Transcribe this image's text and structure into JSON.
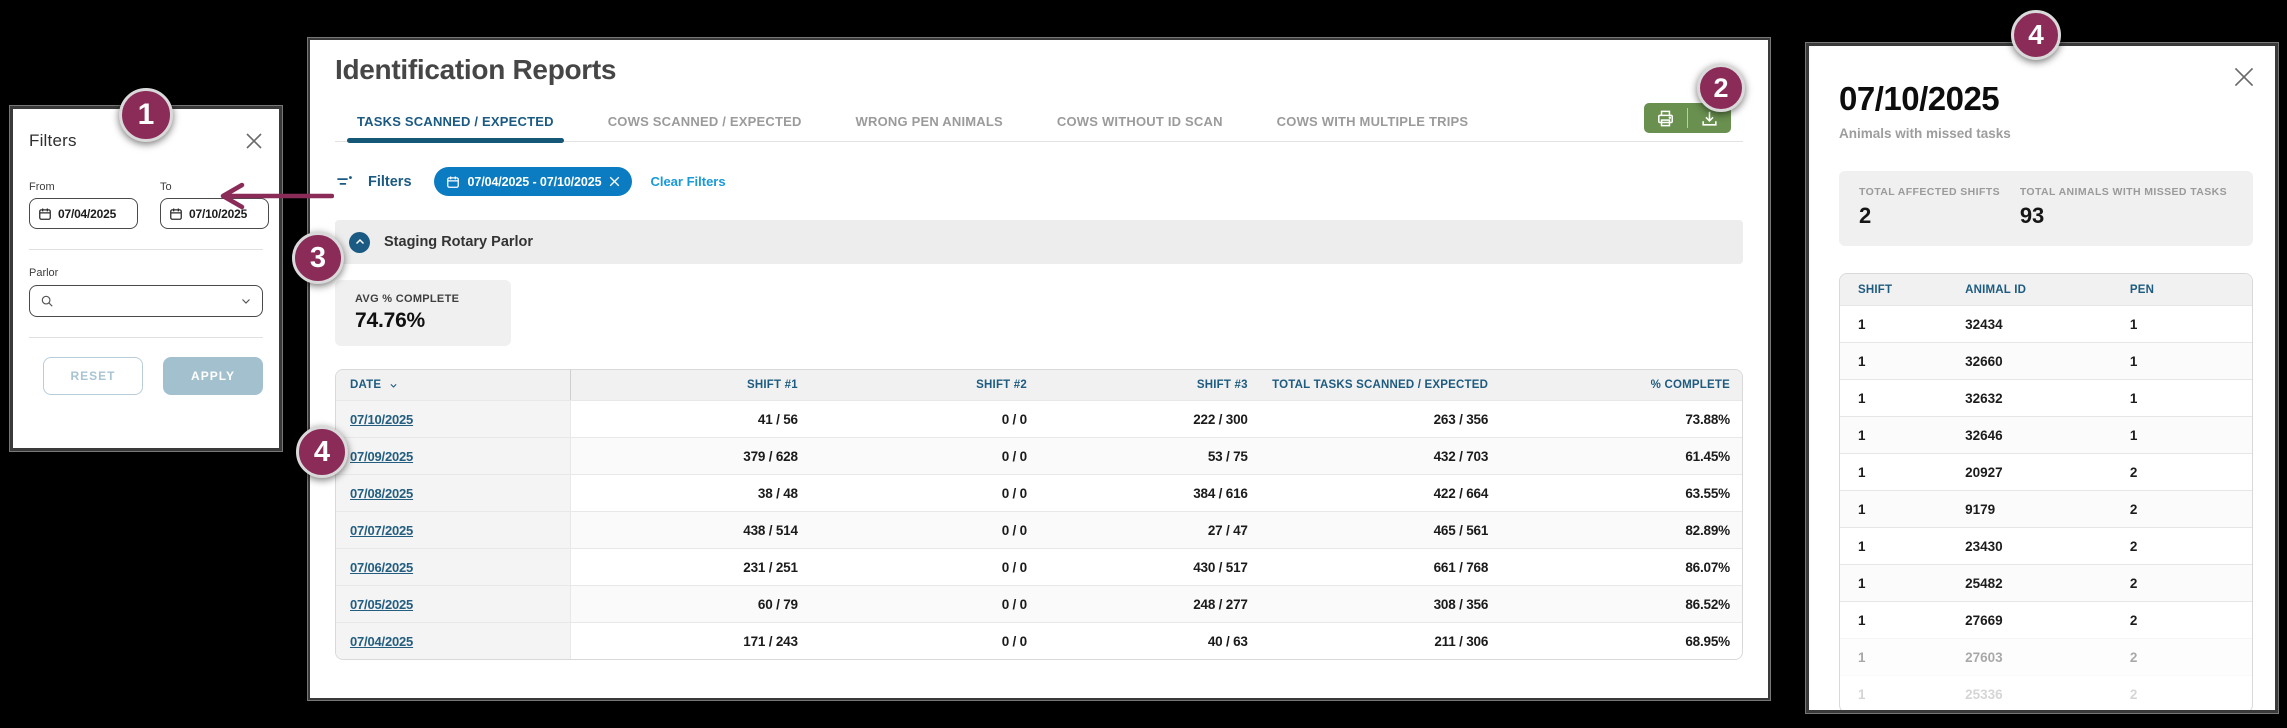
{
  "colors": {
    "annotation": "#8b2b58",
    "accent_blue": "#1b5a82",
    "chip_blue": "#0b7cc1",
    "link_blue": "#189ad8",
    "action_green": "#69904f",
    "apply_button": "#a3c0cf"
  },
  "annotations": {
    "step1": "1",
    "step2": "2",
    "step3": "3",
    "step4_table": "4",
    "step4_panel": "4"
  },
  "filters_panel": {
    "title": "Filters",
    "from_label": "From",
    "from_value": "07/04/2025",
    "to_label": "To",
    "to_value": "07/10/2025",
    "parlor_label": "Parlor",
    "reset_label": "RESET",
    "apply_label": "APPLY"
  },
  "report": {
    "title": "Identification Reports",
    "tabs": [
      {
        "label": "TASKS SCANNED / EXPECTED",
        "active": true
      },
      {
        "label": "COWS SCANNED / EXPECTED",
        "active": false
      },
      {
        "label": "WRONG PEN ANIMALS",
        "active": false
      },
      {
        "label": "COWS WITHOUT ID SCAN",
        "active": false
      },
      {
        "label": "COWS WITH MULTIPLE TRIPS",
        "active": false
      }
    ],
    "filters_bar": {
      "label": "Filters",
      "chip_text": "07/04/2025 - 07/10/2025",
      "clear_label": "Clear Filters"
    },
    "section": {
      "name": "Staging Rotary Parlor"
    },
    "avg": {
      "label": "AVG % COMPLETE",
      "value": "74.76%"
    },
    "table": {
      "columns": [
        "DATE",
        "SHIFT #1",
        "SHIFT #2",
        "SHIFT #3",
        "TOTAL TASKS SCANNED / EXPECTED",
        "% COMPLETE"
      ],
      "rows": [
        {
          "date": "07/10/2025",
          "shift1": "41 / 56",
          "shift2": "0 / 0",
          "shift3": "222 / 300",
          "total": "263 / 356",
          "complete": "73.88%"
        },
        {
          "date": "07/09/2025",
          "shift1": "379 / 628",
          "shift2": "0 / 0",
          "shift3": "53 / 75",
          "total": "432 / 703",
          "complete": "61.45%"
        },
        {
          "date": "07/08/2025",
          "shift1": "38 / 48",
          "shift2": "0 / 0",
          "shift3": "384 / 616",
          "total": "422 / 664",
          "complete": "63.55%"
        },
        {
          "date": "07/07/2025",
          "shift1": "438 / 514",
          "shift2": "0 / 0",
          "shift3": "27 / 47",
          "total": "465 / 561",
          "complete": "82.89%"
        },
        {
          "date": "07/06/2025",
          "shift1": "231 / 251",
          "shift2": "0 / 0",
          "shift3": "430 / 517",
          "total": "661 / 768",
          "complete": "86.07%"
        },
        {
          "date": "07/05/2025",
          "shift1": "60 / 79",
          "shift2": "0 / 0",
          "shift3": "248 / 277",
          "total": "308 / 356",
          "complete": "86.52%"
        },
        {
          "date": "07/04/2025",
          "shift1": "171 / 243",
          "shift2": "0 / 0",
          "shift3": "40 / 63",
          "total": "211 / 306",
          "complete": "68.95%"
        }
      ]
    }
  },
  "detail_panel": {
    "title": "07/10/2025",
    "subtitle": "Animals with missed tasks",
    "stats": [
      {
        "label": "TOTAL AFFECTED SHIFTS",
        "value": "2"
      },
      {
        "label": "TOTAL ANIMALS WITH MISSED TASKS",
        "value": "93"
      }
    ],
    "table": {
      "columns": [
        "SHIFT",
        "ANIMAL ID",
        "PEN"
      ],
      "rows": [
        {
          "shift": "1",
          "animal_id": "32434",
          "pen": "1",
          "opacity": 1
        },
        {
          "shift": "1",
          "animal_id": "32660",
          "pen": "1",
          "opacity": 1
        },
        {
          "shift": "1",
          "animal_id": "32632",
          "pen": "1",
          "opacity": 1
        },
        {
          "shift": "1",
          "animal_id": "32646",
          "pen": "1",
          "opacity": 1
        },
        {
          "shift": "1",
          "animal_id": "20927",
          "pen": "2",
          "opacity": 1
        },
        {
          "shift": "1",
          "animal_id": "9179",
          "pen": "2",
          "opacity": 1
        },
        {
          "shift": "1",
          "animal_id": "23430",
          "pen": "2",
          "opacity": 1
        },
        {
          "shift": "1",
          "animal_id": "25482",
          "pen": "2",
          "opacity": 1
        },
        {
          "shift": "1",
          "animal_id": "27669",
          "pen": "2",
          "opacity": 1
        },
        {
          "shift": "1",
          "animal_id": "27603",
          "pen": "2",
          "opacity": 0.38
        },
        {
          "shift": "1",
          "animal_id": "25336",
          "pen": "2",
          "opacity": 0.18
        }
      ]
    }
  }
}
